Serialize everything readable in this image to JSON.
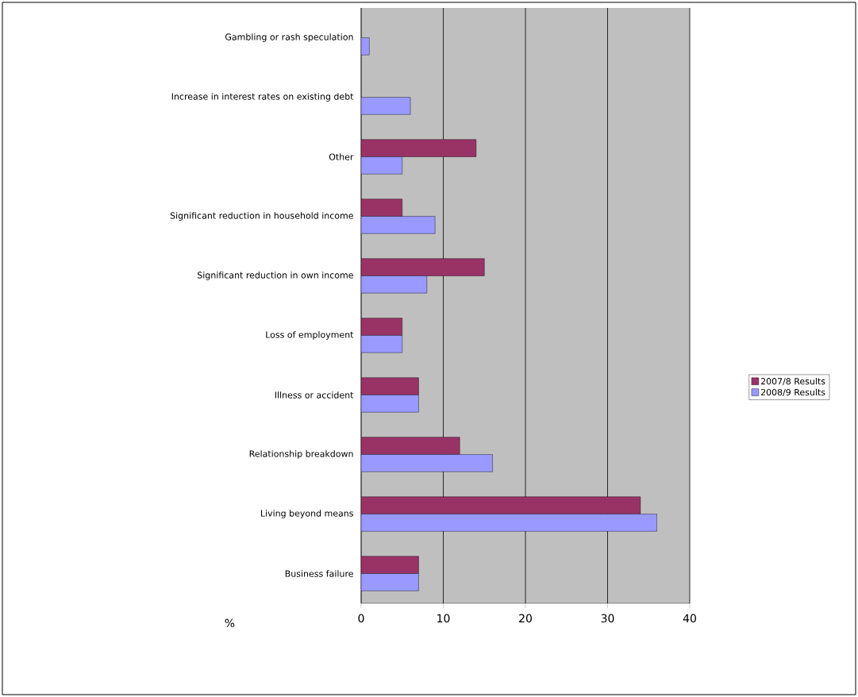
{
  "chart_data": {
    "type": "bar",
    "orientation": "horizontal",
    "xlabel": "%",
    "categories": [
      "Gambling or rash speculation",
      "Increase in interest rates on existing debt",
      "Other",
      "Significant reduction in household income",
      "Significant reduction in own income",
      "Loss of employment",
      "Illness or accident",
      "Relationship breakdown",
      "Living beyond means",
      "Business failure"
    ],
    "series": [
      {
        "name": "2007/8 Results",
        "color": "#993366",
        "values": [
          null,
          null,
          14,
          5,
          15,
          5,
          7,
          12,
          34,
          7
        ]
      },
      {
        "name": "2008/9 Results",
        "color": "#9999ff",
        "values": [
          1,
          6,
          5,
          9,
          8,
          5,
          7,
          16,
          36,
          7
        ]
      }
    ],
    "xlim": [
      0,
      40
    ],
    "xticks": [
      0,
      10,
      20,
      30,
      40
    ],
    "grid": "x",
    "legend": "right"
  }
}
